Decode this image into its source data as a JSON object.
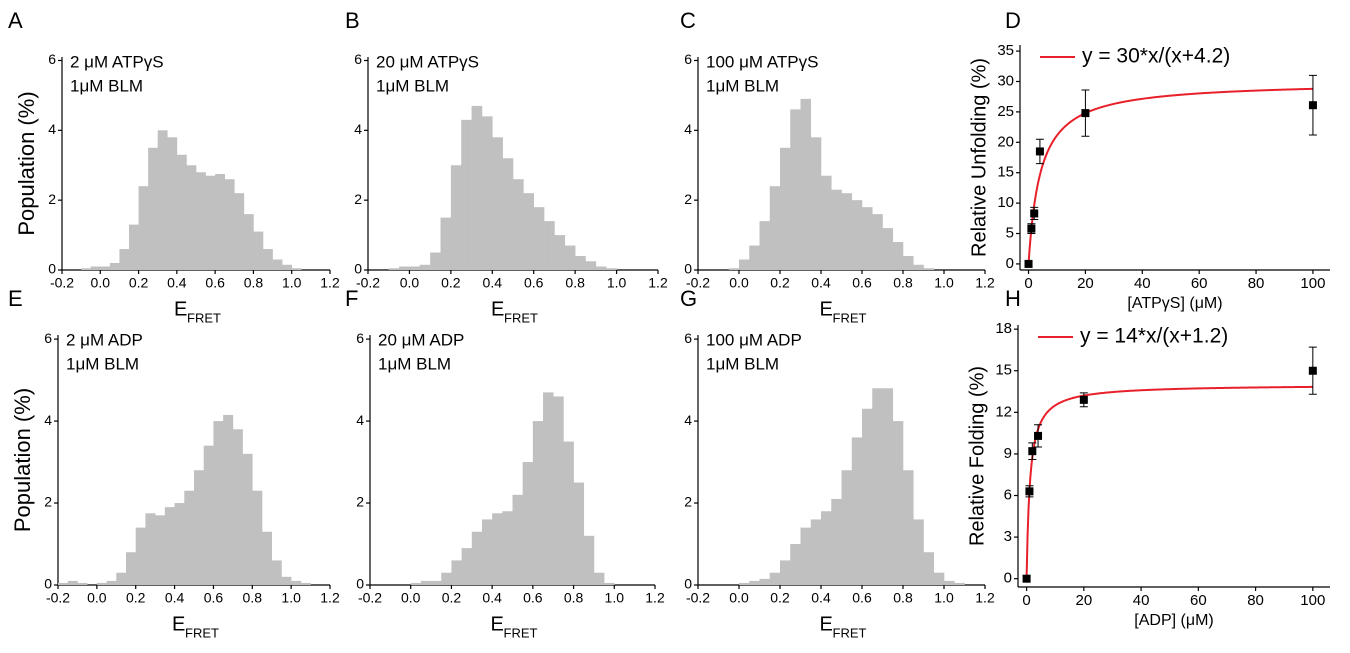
{
  "chart_data": [
    {
      "type": "histogram",
      "panel": "A",
      "annotation": [
        "2 μM ATPγS",
        "1μM BLM"
      ],
      "ylabel": "Population (%)",
      "xlabel": "E",
      "xlabel_subscript": "FRET",
      "color": "#c0c0c0",
      "bins": [
        -0.2,
        -0.15,
        -0.1,
        -0.05,
        0,
        0.05,
        0.1,
        0.15,
        0.2,
        0.25,
        0.3,
        0.35,
        0.4,
        0.45,
        0.5,
        0.55,
        0.6,
        0.65,
        0.7,
        0.75,
        0.8,
        0.85,
        0.9,
        0.95,
        1,
        1.05,
        1.1,
        1.15,
        1.2
      ],
      "counts": [
        0,
        0,
        0.05,
        0.1,
        0.1,
        0.2,
        0.6,
        1.3,
        2.4,
        3.5,
        4.0,
        3.8,
        3.3,
        3.0,
        2.8,
        2.7,
        2.75,
        2.6,
        2.2,
        1.6,
        1.1,
        0.6,
        0.3,
        0.15,
        0.05,
        0,
        0,
        0
      ],
      "xlim": [
        -0.2,
        1.2
      ],
      "xticks": [
        -0.2,
        {
          "value": 0,
          "label": "0.0"
        },
        0.2,
        0.4,
        0.6,
        0.8,
        {
          "value": 1,
          "label": "1.0"
        },
        1.2
      ],
      "ylim": [
        0,
        6.1
      ],
      "yticks": [
        0,
        2,
        4,
        6
      ]
    },
    {
      "type": "histogram",
      "panel": "B",
      "annotation": [
        "20 μM ATPγS",
        "1μM BLM"
      ],
      "xlabel": "E",
      "xlabel_subscript": "FRET",
      "color": "#c0c0c0",
      "bins": [
        -0.2,
        -0.15,
        -0.1,
        -0.05,
        0,
        0.05,
        0.1,
        0.15,
        0.2,
        0.25,
        0.3,
        0.35,
        0.4,
        0.45,
        0.5,
        0.55,
        0.6,
        0.65,
        0.7,
        0.75,
        0.8,
        0.85,
        0.9,
        0.95,
        1,
        1.05,
        1.1,
        1.15,
        1.2
      ],
      "counts": [
        0,
        0,
        0.05,
        0.1,
        0.1,
        0.15,
        0.5,
        1.5,
        3.0,
        4.3,
        4.7,
        4.4,
        3.8,
        3.2,
        2.6,
        2.2,
        1.8,
        1.4,
        1.0,
        0.7,
        0.4,
        0.25,
        0.1,
        0.05,
        0,
        0,
        0,
        0
      ],
      "xlim": [
        -0.2,
        1.2
      ],
      "xticks": [
        -0.2,
        {
          "value": 0,
          "label": "0.0"
        },
        0.2,
        0.4,
        0.6,
        0.8,
        {
          "value": 1,
          "label": "1.0"
        },
        1.2
      ],
      "ylim": [
        0,
        6.1
      ],
      "yticks": [
        0,
        2,
        4,
        6
      ]
    },
    {
      "type": "histogram",
      "panel": "C",
      "annotation": [
        "100 μM ATPγS",
        "1μM BLM"
      ],
      "xlabel": "E",
      "xlabel_subscript": "FRET",
      "color": "#c0c0c0",
      "bins": [
        -0.2,
        -0.15,
        -0.1,
        -0.05,
        0,
        0.05,
        0.1,
        0.15,
        0.2,
        0.25,
        0.3,
        0.35,
        0.4,
        0.45,
        0.5,
        0.55,
        0.6,
        0.65,
        0.7,
        0.75,
        0.8,
        0.85,
        0.9,
        0.95,
        1,
        1.05,
        1.1,
        1.15,
        1.2
      ],
      "counts": [
        0,
        0,
        0,
        0.05,
        0.3,
        0.7,
        1.4,
        2.4,
        3.5,
        4.6,
        4.9,
        3.8,
        2.7,
        2.3,
        2.2,
        2.0,
        1.8,
        1.6,
        1.2,
        0.8,
        0.4,
        0.15,
        0.05,
        0,
        0,
        0,
        0,
        0
      ],
      "xlim": [
        -0.2,
        1.2
      ],
      "xticks": [
        -0.2,
        {
          "value": 0,
          "label": "0.0"
        },
        0.2,
        0.4,
        0.6,
        0.8,
        {
          "value": 1,
          "label": "1.0"
        },
        1.2
      ],
      "ylim": [
        0,
        6.1
      ],
      "yticks": [
        0,
        2,
        4,
        6
      ]
    },
    {
      "type": "scatter",
      "panel": "D",
      "ylabel": "Relative Unfolding (%)",
      "xlabel": "[ATPγS] (μM)",
      "color": "#000000",
      "x": [
        0,
        1,
        2,
        4,
        20,
        100
      ],
      "y": [
        0,
        5.8,
        8.3,
        18.5,
        24.8,
        26.1
      ],
      "error": [
        0.3,
        0.8,
        1.0,
        2.0,
        3.8,
        4.9
      ],
      "fit": {
        "label": "y = 30*x/(x+4.2)",
        "vmax": 30,
        "k": 4.2,
        "color": "#e8202a"
      },
      "xlim": [
        -3,
        106
      ],
      "xticks": [
        0,
        20,
        40,
        60,
        80,
        100
      ],
      "ylim": [
        -1,
        36
      ],
      "yticks": [
        0,
        5,
        10,
        15,
        20,
        25,
        30,
        35
      ]
    },
    {
      "type": "histogram",
      "panel": "E",
      "annotation": [
        "2 μM ADP",
        "1μM BLM"
      ],
      "ylabel": "Population (%)",
      "xlabel": "E",
      "xlabel_subscript": "FRET",
      "color": "#c0c0c0",
      "bins": [
        -0.2,
        -0.15,
        -0.1,
        -0.05,
        0,
        0.05,
        0.1,
        0.15,
        0.2,
        0.25,
        0.3,
        0.35,
        0.4,
        0.45,
        0.5,
        0.55,
        0.6,
        0.65,
        0.7,
        0.75,
        0.8,
        0.85,
        0.9,
        0.95,
        1,
        1.05,
        1.1,
        1.15,
        1.2
      ],
      "counts": [
        0.05,
        0.1,
        0.05,
        0,
        0.05,
        0.1,
        0.3,
        0.8,
        1.4,
        1.75,
        1.7,
        1.9,
        2.0,
        2.3,
        2.8,
        3.4,
        4.0,
        4.15,
        3.8,
        3.2,
        2.3,
        1.3,
        0.6,
        0.2,
        0.1,
        0.05,
        0,
        0
      ],
      "xlim": [
        -0.2,
        1.2
      ],
      "xticks": [
        -0.2,
        {
          "value": 0,
          "label": "0.0"
        },
        0.2,
        0.4,
        0.6,
        0.8,
        {
          "value": 1,
          "label": "1.0"
        },
        1.2
      ],
      "ylim": [
        0,
        6.1
      ],
      "yticks": [
        0,
        2,
        4,
        6
      ]
    },
    {
      "type": "histogram",
      "panel": "F",
      "annotation": [
        "20 μM ADP",
        "1μM BLM"
      ],
      "xlabel": "E",
      "xlabel_subscript": "FRET",
      "color": "#c0c0c0",
      "bins": [
        -0.2,
        -0.15,
        -0.1,
        -0.05,
        0,
        0.05,
        0.1,
        0.15,
        0.2,
        0.25,
        0.3,
        0.35,
        0.4,
        0.45,
        0.5,
        0.55,
        0.6,
        0.65,
        0.7,
        0.75,
        0.8,
        0.85,
        0.9,
        0.95,
        1,
        1.05,
        1.1,
        1.15,
        1.2
      ],
      "counts": [
        0,
        0,
        0,
        0,
        0.05,
        0.1,
        0.1,
        0.3,
        0.6,
        0.9,
        1.3,
        1.6,
        1.75,
        1.8,
        2.2,
        3.0,
        4.0,
        4.7,
        4.6,
        3.5,
        2.5,
        1.2,
        0.3,
        0.05,
        0,
        0,
        0,
        0
      ],
      "xlim": [
        -0.2,
        1.2
      ],
      "xticks": [
        -0.2,
        {
          "value": 0,
          "label": "0.0"
        },
        0.2,
        0.4,
        0.6,
        0.8,
        {
          "value": 1,
          "label": "1.0"
        },
        1.2
      ],
      "ylim": [
        0,
        6.1
      ],
      "yticks": [
        0,
        2,
        4,
        6
      ]
    },
    {
      "type": "histogram",
      "panel": "G",
      "annotation": [
        "100 μM ADP",
        "1μM BLM"
      ],
      "xlabel": "E",
      "xlabel_subscript": "FRET",
      "color": "#c0c0c0",
      "bins": [
        -0.2,
        -0.15,
        -0.1,
        -0.05,
        0,
        0.05,
        0.1,
        0.15,
        0.2,
        0.25,
        0.3,
        0.35,
        0.4,
        0.45,
        0.5,
        0.55,
        0.6,
        0.65,
        0.7,
        0.75,
        0.8,
        0.85,
        0.9,
        0.95,
        1,
        1.05,
        1.1,
        1.15,
        1.2
      ],
      "counts": [
        0,
        0,
        0,
        0,
        0.05,
        0.1,
        0.15,
        0.3,
        0.6,
        1.0,
        1.4,
        1.6,
        1.8,
        2.1,
        2.8,
        3.6,
        4.3,
        4.8,
        4.8,
        4.0,
        2.8,
        1.6,
        0.8,
        0.3,
        0.1,
        0.05,
        0,
        0
      ],
      "xlim": [
        -0.2,
        1.2
      ],
      "xticks": [
        -0.2,
        {
          "value": 0,
          "label": "0.0"
        },
        0.2,
        0.4,
        0.6,
        0.8,
        {
          "value": 1,
          "label": "1.0"
        },
        1.2
      ],
      "ylim": [
        0,
        6.1
      ],
      "yticks": [
        0,
        2,
        4,
        6
      ]
    },
    {
      "type": "scatter",
      "panel": "H",
      "ylabel": "Relative Folding (%)",
      "xlabel": "[ADP] (μM)",
      "color": "#000000",
      "x": [
        0,
        1,
        2,
        4,
        20,
        100
      ],
      "y": [
        0,
        6.3,
        9.2,
        10.3,
        12.9,
        15
      ],
      "error": [
        0.2,
        0.4,
        0.6,
        0.8,
        0.5,
        1.7
      ],
      "fit": {
        "label": "y = 14*x/(x+1.2)",
        "vmax": 14,
        "k": 1.2,
        "color": "#e8202a"
      },
      "xlim": [
        -3,
        106
      ],
      "xticks": [
        0,
        20,
        40,
        60,
        80,
        100
      ],
      "ylim": [
        -0.6,
        18.3
      ],
      "yticks": [
        0,
        3,
        6,
        9,
        12,
        15,
        18
      ]
    }
  ]
}
